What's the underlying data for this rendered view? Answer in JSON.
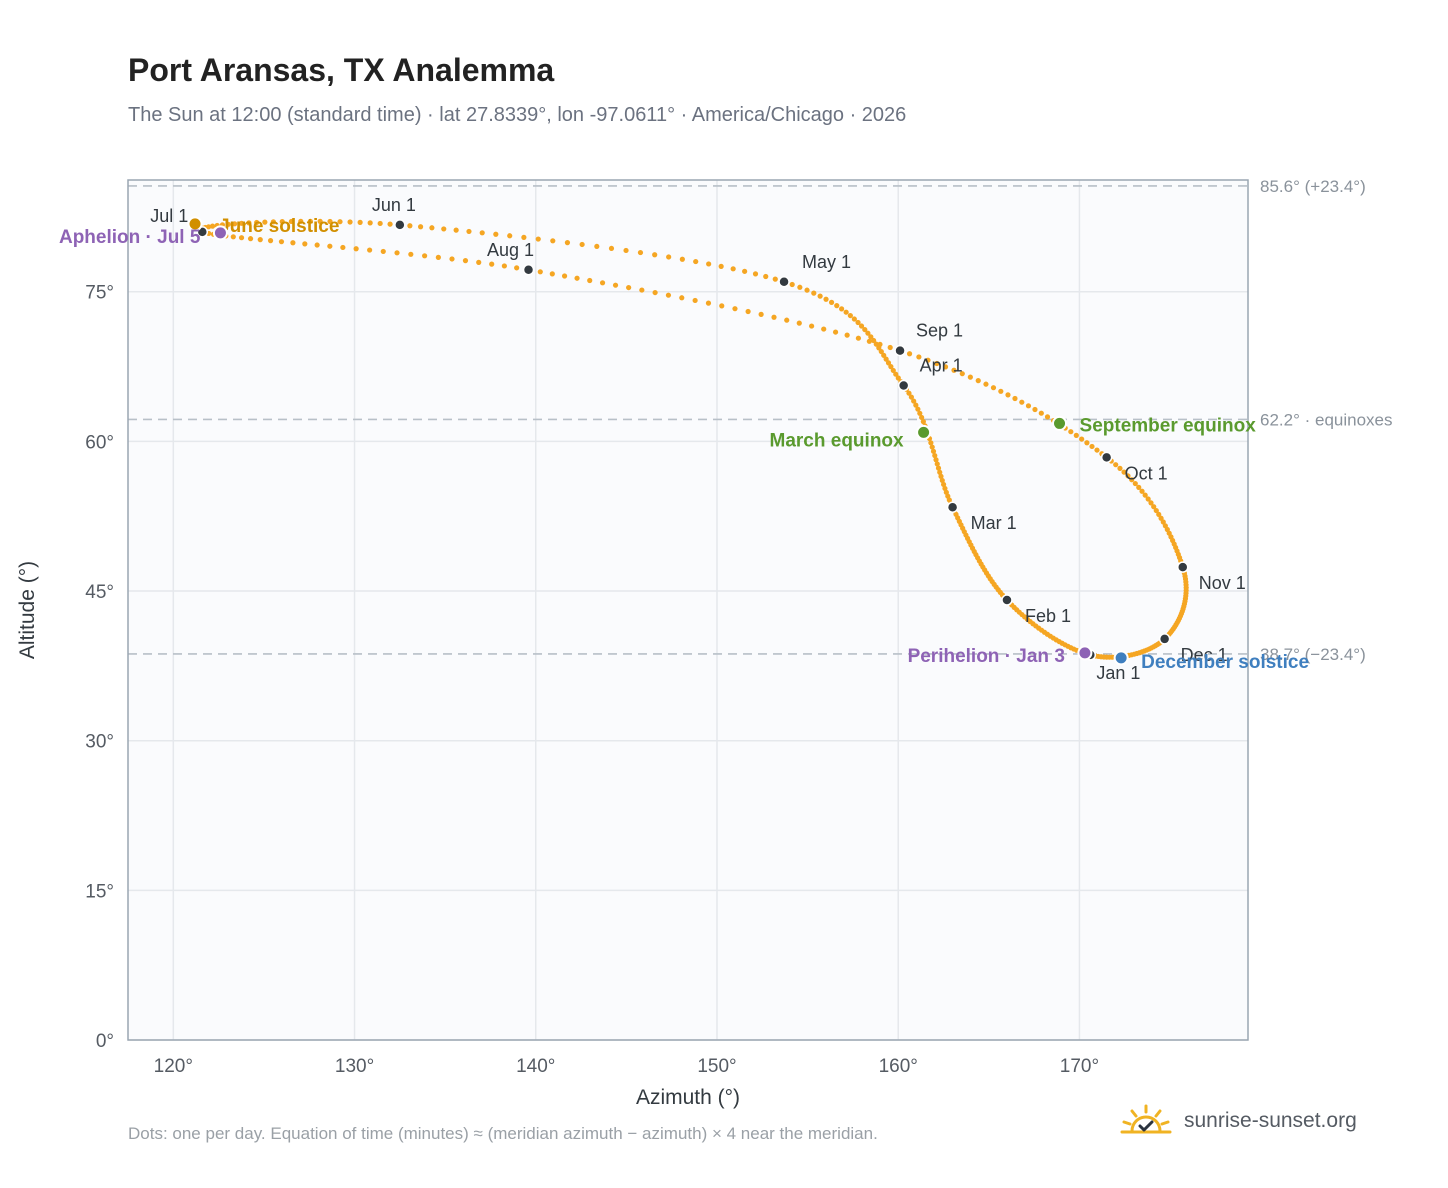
{
  "title": "Port Aransas, TX Analemma",
  "subtitle": "The Sun at 12:00 (standard time) · lat 27.8339°, lon -97.0611° · America/Chicago · 2026",
  "footer_note": "Dots: one per day. Equation of time (minutes) ≈ (meridian azimuth − azimuth) × 4 near the meridian.",
  "brand": "sunrise-sunset.org",
  "colors": {
    "curve": "#f5a623",
    "month_dot": "#333a40",
    "equinox": "#5a9a2e",
    "solstice_june": "#d18f00",
    "solstice_december": "#3f7fbf",
    "apsis": "#8e63b5",
    "reference_line": "#b8c0c8",
    "plot_bg": "#fafbfd",
    "grid": "#e5e8ec",
    "frame": "#9aa6b2"
  },
  "chart_data": {
    "type": "scatter",
    "xlabel": "Azimuth (°)",
    "ylabel": "Altitude (°)",
    "xlim": [
      117.5,
      179.3
    ],
    "ylim": [
      0,
      86.2
    ],
    "x_ticks": [
      "120°",
      "130°",
      "140°",
      "150°",
      "160°",
      "170°"
    ],
    "x_tick_values": [
      120,
      130,
      140,
      150,
      160,
      170
    ],
    "y_ticks": [
      "0°",
      "15°",
      "30°",
      "45°",
      "60°",
      "75°"
    ],
    "y_tick_values": [
      0,
      15,
      30,
      45,
      60,
      75
    ],
    "grid": true,
    "reference_lines": [
      {
        "y": 85.6,
        "label": "85.6° (+23.4°)"
      },
      {
        "y": 62.2,
        "label": "62.2° · equinoxes"
      },
      {
        "y": 38.7,
        "label": "38.7° (−23.4°)"
      }
    ],
    "month_markers": [
      {
        "label": "Jan 1",
        "x": 170.6,
        "y": 38.6
      },
      {
        "label": "Feb 1",
        "x": 166.0,
        "y": 44.1
      },
      {
        "label": "Mar 1",
        "x": 163.0,
        "y": 53.4
      },
      {
        "label": "Apr 1",
        "x": 160.3,
        "y": 65.6
      },
      {
        "label": "May 1",
        "x": 153.7,
        "y": 76.0
      },
      {
        "label": "Jun 1",
        "x": 132.5,
        "y": 81.7
      },
      {
        "label": "Jul 1",
        "x": 121.6,
        "y": 81.0
      },
      {
        "label": "Aug 1",
        "x": 139.6,
        "y": 77.2
      },
      {
        "label": "Sep 1",
        "x": 160.1,
        "y": 69.1
      },
      {
        "label": "Oct 1",
        "x": 171.5,
        "y": 58.4
      },
      {
        "label": "Nov 1",
        "x": 175.7,
        "y": 47.4
      },
      {
        "label": "Dec 1",
        "x": 174.7,
        "y": 40.2
      }
    ],
    "events": [
      {
        "label": "March equinox",
        "x": 161.4,
        "y": 60.9,
        "kind": "equinox"
      },
      {
        "label": "September equinox",
        "x": 168.9,
        "y": 61.8,
        "kind": "equinox"
      },
      {
        "label": "June solstice",
        "x": 121.2,
        "y": 81.8,
        "kind": "solstice_june"
      },
      {
        "label": "December solstice",
        "x": 172.3,
        "y": 38.3,
        "kind": "solstice_december"
      },
      {
        "label": "Perihelion · Jan 3",
        "x": 170.3,
        "y": 38.8,
        "kind": "apsis"
      },
      {
        "label": "Aphelion · Jul 5",
        "x": 122.6,
        "y": 80.9,
        "kind": "apsis"
      }
    ]
  }
}
